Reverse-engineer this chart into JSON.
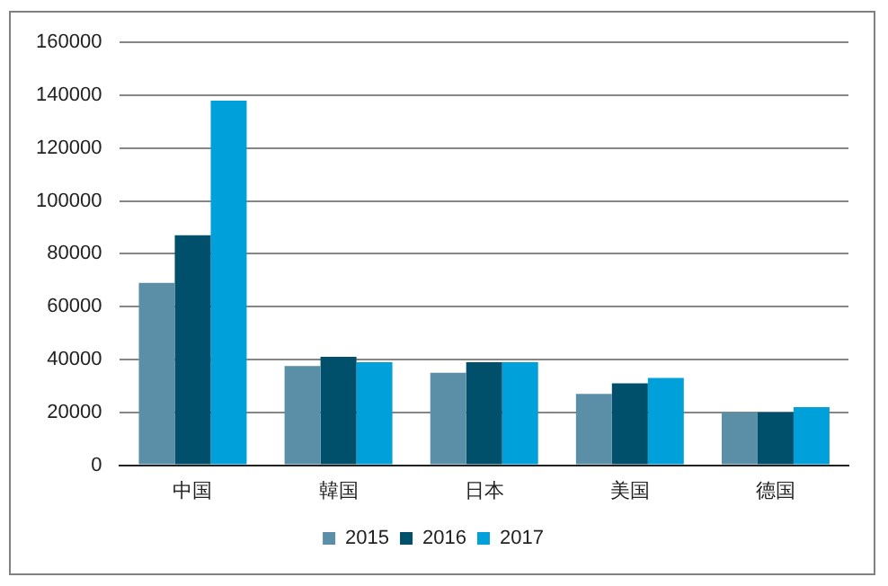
{
  "chart_data": {
    "type": "bar",
    "categories": [
      "中国",
      "韓国",
      "日本",
      "美国",
      "德国"
    ],
    "series": [
      {
        "name": "2015",
        "color": "#5b8fa8",
        "values": [
          69000,
          37500,
          35000,
          27000,
          20000
        ]
      },
      {
        "name": "2016",
        "color": "#004f6b",
        "values": [
          87000,
          41000,
          39000,
          31000,
          20000
        ]
      },
      {
        "name": "2017",
        "color": "#00a1da",
        "values": [
          138000,
          39000,
          39000,
          33000,
          22000
        ]
      }
    ],
    "ylim": [
      0,
      160000
    ],
    "yticks": [
      0,
      20000,
      40000,
      60000,
      80000,
      100000,
      120000,
      140000,
      160000
    ],
    "grid": "y",
    "legend": "bottom"
  }
}
